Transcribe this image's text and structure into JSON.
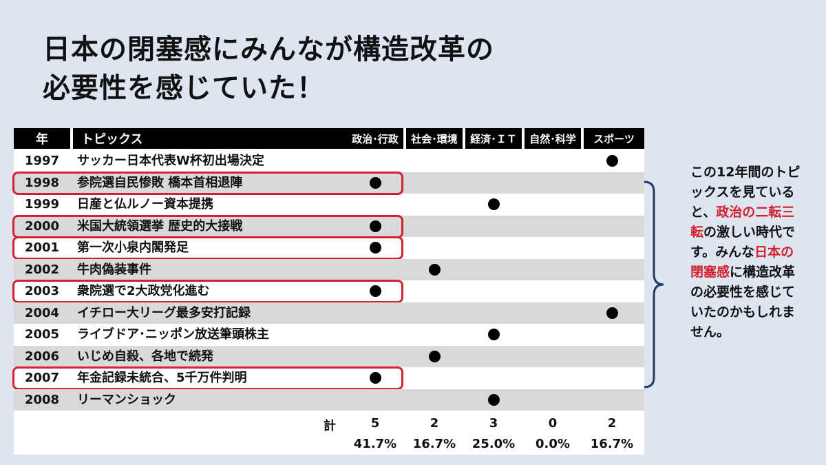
{
  "title": {
    "line1": "日本の閉塞感にみんなが構造改革の",
    "line2": "必要性を感じていた！"
  },
  "table": {
    "headers": {
      "year": "年",
      "topic": "トピックス",
      "categories": [
        "政治･行政",
        "社会･環境",
        "経済･ＩＴ",
        "自然･科学",
        "スポーツ"
      ]
    },
    "rows": [
      {
        "year": "1997",
        "topic": "サッカー日本代表W杯初出場決定",
        "category": 4,
        "highlight": false
      },
      {
        "year": "1998",
        "topic": "参院選自民惨敗 橋本首相退陣",
        "category": 0,
        "highlight": true
      },
      {
        "year": "1999",
        "topic": "日産と仏ルノー資本提携",
        "category": 2,
        "highlight": false
      },
      {
        "year": "2000",
        "topic": "米国大統領選挙 歴史的大接戦",
        "category": 0,
        "highlight": true
      },
      {
        "year": "2001",
        "topic": "第一次小泉内閣発足",
        "category": 0,
        "highlight": true
      },
      {
        "year": "2002",
        "topic": "牛肉偽装事件",
        "category": 1,
        "highlight": false
      },
      {
        "year": "2003",
        "topic": "衆院選で2大政党化進む",
        "category": 0,
        "highlight": true
      },
      {
        "year": "2004",
        "topic": "イチロー大リーグ最多安打記録",
        "category": 4,
        "highlight": false
      },
      {
        "year": "2005",
        "topic": "ライブドア･ニッポン放送筆頭株主",
        "category": 2,
        "highlight": false
      },
      {
        "year": "2006",
        "topic": "いじめ自殺、各地で続発",
        "category": 1,
        "highlight": false
      },
      {
        "year": "2007",
        "topic": "年金記録未統合、5千万件判明",
        "category": 0,
        "highlight": true
      },
      {
        "year": "2008",
        "topic": "リーマンショック",
        "category": 2,
        "highlight": false
      }
    ],
    "total_label": "計",
    "totals": [
      "5",
      "2",
      "3",
      "0",
      "2"
    ],
    "percents": [
      "41.7%",
      "16.7%",
      "25.0%",
      "0.0%",
      "16.7%"
    ]
  },
  "note": {
    "p1": "この12年間のトピックスを見ていると、",
    "p2_red": "政治の二転三転",
    "p3": "の激しい時代です。みんな",
    "p4_red": "日本の閉塞感",
    "p5": "に構造改革の必要性を感じていたのかもしれません。"
  },
  "colors": {
    "highlight": "#d3212d",
    "header_bg": "#000000",
    "row_shade": "#d9d9d9",
    "background": "#dde6f0"
  }
}
